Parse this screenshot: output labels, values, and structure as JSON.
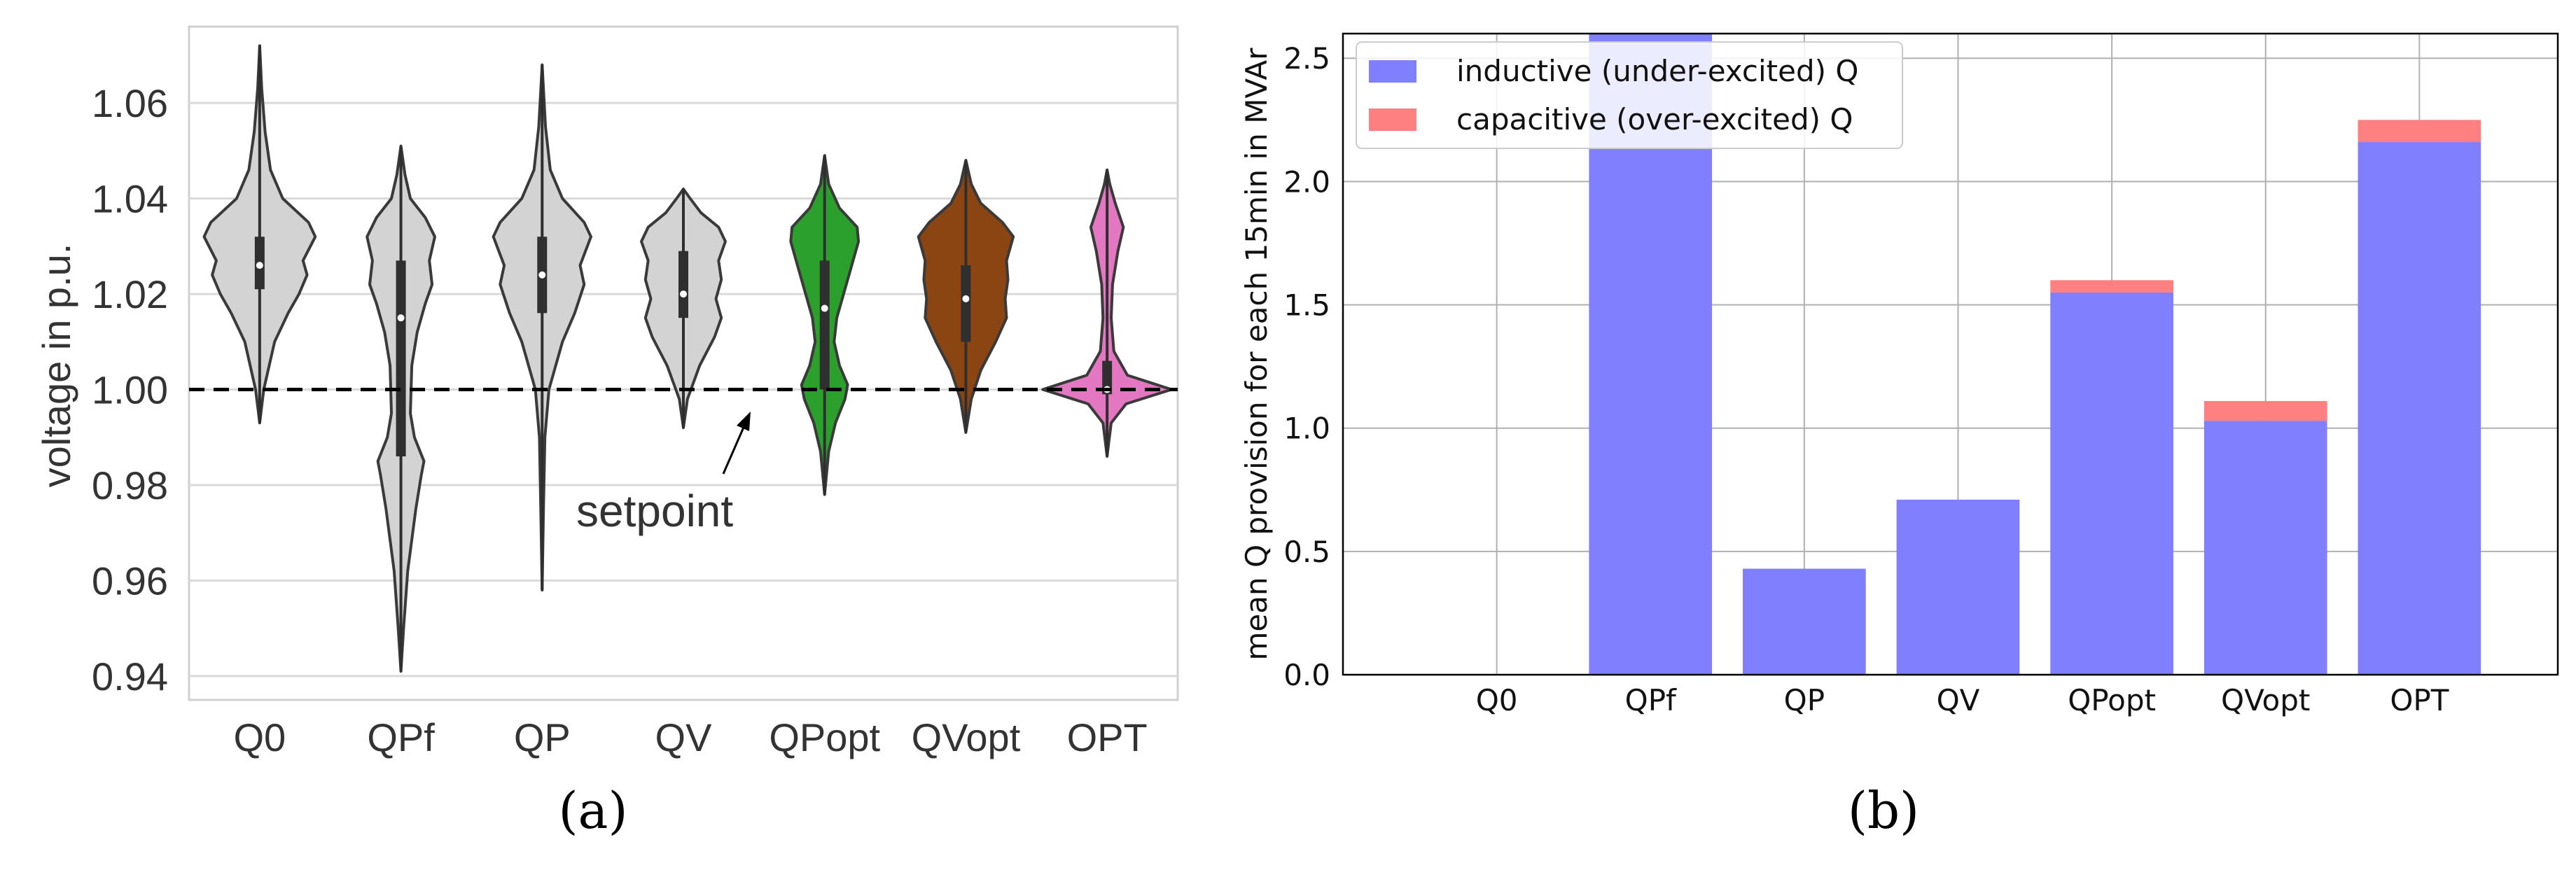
{
  "chart_data": [
    {
      "type": "violin",
      "panel_label": "(a)",
      "ylabel": "voltage in p.u.",
      "categories": [
        "Q0",
        "QPf",
        "QP",
        "QV",
        "QPopt",
        "QVopt",
        "OPT"
      ],
      "yticks": [
        "0.94",
        "0.96",
        "0.98",
        "1.00",
        "1.02",
        "1.04",
        "1.06"
      ],
      "ylim": [
        0.935,
        1.076
      ],
      "reference_line": {
        "y": 1.0,
        "style": "dashed",
        "annotation": "setpoint"
      },
      "grid": "horizontal",
      "colors": [
        "#d3d3d3",
        "#d3d3d3",
        "#d3d3d3",
        "#d3d3d3",
        "#2ca02c",
        "#8b4513",
        "#e377c2"
      ],
      "series": [
        {
          "name": "Q0",
          "min": 0.993,
          "max": 1.072,
          "q1": 1.021,
          "median": 1.026,
          "q3": 1.032
        },
        {
          "name": "QPf",
          "min": 0.941,
          "max": 1.051,
          "q1": 0.986,
          "median": 1.015,
          "q3": 1.027
        },
        {
          "name": "QP",
          "min": 0.958,
          "max": 1.068,
          "q1": 1.016,
          "median": 1.024,
          "q3": 1.032
        },
        {
          "name": "QV",
          "min": 0.992,
          "max": 1.042,
          "q1": 1.015,
          "median": 1.02,
          "q3": 1.029
        },
        {
          "name": "QPopt",
          "min": 0.978,
          "max": 1.049,
          "q1": 1.0,
          "median": 1.017,
          "q3": 1.027
        },
        {
          "name": "QVopt",
          "min": 0.991,
          "max": 1.048,
          "q1": 1.01,
          "median": 1.019,
          "q3": 1.026
        },
        {
          "name": "OPT",
          "min": 0.986,
          "max": 1.046,
          "q1": 0.999,
          "median": 1.0,
          "q3": 1.006
        }
      ]
    },
    {
      "type": "bar",
      "stacked": true,
      "panel_label": "(b)",
      "ylabel": "mean Q provision for each 15min in MVAr",
      "categories": [
        "Q0",
        "QPf",
        "QP",
        "QV",
        "QPopt",
        "QVopt",
        "OPT"
      ],
      "yticks": [
        "0.0",
        "0.5",
        "1.0",
        "1.5",
        "2.0",
        "2.5"
      ],
      "ylim": [
        0,
        2.6
      ],
      "grid": "both",
      "legend_position": "top-left",
      "series": [
        {
          "name": "inductive (under-excited) Q",
          "color": "#8080ff",
          "values": [
            0.0,
            2.6,
            0.43,
            0.71,
            1.55,
            1.03,
            2.16
          ]
        },
        {
          "name": "capacitive (over-excited) Q",
          "color": "#ff8080",
          "values": [
            0.0,
            0.0,
            0.0,
            0.0,
            0.05,
            0.08,
            0.09
          ]
        }
      ]
    }
  ]
}
